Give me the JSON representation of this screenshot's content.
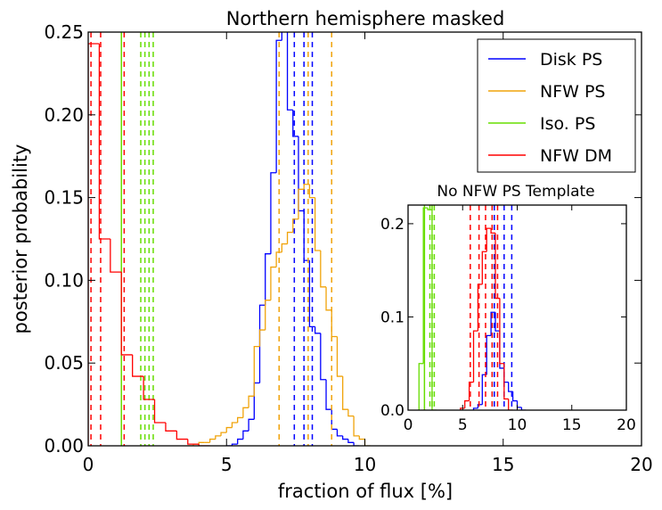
{
  "colors": {
    "disk": "#0000ff",
    "nfw_ps": "#f0a30a",
    "iso": "#66dd00",
    "nfw_dm": "#ff0000",
    "axes": "#000000",
    "background": "#ffffff"
  },
  "chart_data": [
    {
      "type": "step",
      "title": "Northern hemisphere masked",
      "xlabel": "fraction of flux [%]",
      "ylabel": "posterior probability",
      "xlim": [
        0,
        20
      ],
      "ylim": [
        0,
        0.25
      ],
      "xticks": [
        0,
        5,
        10,
        15,
        20
      ],
      "xtick_labels": [
        "0",
        "5",
        "10",
        "15",
        "20"
      ],
      "yticks": [
        0,
        0.05,
        0.1,
        0.15,
        0.2,
        0.25
      ],
      "ytick_labels": [
        "0.00",
        "0.05",
        "0.10",
        "0.15",
        "0.20",
        "0.25"
      ],
      "grid": false,
      "legend_position": "top-right",
      "series": [
        {
          "name": "Disk PS",
          "color_key": "disk",
          "bins": [
            [
              5.0,
              5.2,
              0.0
            ],
            [
              5.2,
              5.4,
              0.001
            ],
            [
              5.4,
              5.6,
              0.004
            ],
            [
              5.6,
              5.8,
              0.009
            ],
            [
              5.8,
              6.0,
              0.016
            ],
            [
              6.0,
              6.2,
              0.038
            ],
            [
              6.2,
              6.4,
              0.085
            ],
            [
              6.4,
              6.6,
              0.116
            ],
            [
              6.6,
              6.8,
              0.165
            ],
            [
              6.8,
              7.0,
              0.245
            ],
            [
              7.0,
              7.2,
              0.255
            ],
            [
              7.2,
              7.4,
              0.203
            ],
            [
              7.4,
              7.6,
              0.187
            ],
            [
              7.6,
              7.8,
              0.142
            ],
            [
              7.8,
              8.0,
              0.112
            ],
            [
              8.0,
              8.2,
              0.072
            ],
            [
              8.2,
              8.4,
              0.068
            ],
            [
              8.4,
              8.6,
              0.04
            ],
            [
              8.6,
              8.8,
              0.022
            ],
            [
              8.8,
              9.0,
              0.01
            ],
            [
              9.0,
              9.2,
              0.006
            ],
            [
              9.2,
              9.4,
              0.004
            ],
            [
              9.4,
              9.6,
              0.002
            ],
            [
              9.6,
              9.8,
              0.0
            ]
          ],
          "vlines": [
            7.45,
            7.8,
            8.1
          ]
        },
        {
          "name": "NFW PS",
          "color_key": "nfw_ps",
          "bins": [
            [
              3.6,
              3.8,
              0.0
            ],
            [
              3.8,
              4.0,
              0.001
            ],
            [
              4.0,
              4.2,
              0.002
            ],
            [
              4.2,
              4.4,
              0.002
            ],
            [
              4.4,
              4.6,
              0.004
            ],
            [
              4.6,
              4.8,
              0.006
            ],
            [
              4.8,
              5.0,
              0.008
            ],
            [
              5.0,
              5.2,
              0.011
            ],
            [
              5.2,
              5.4,
              0.014
            ],
            [
              5.4,
              5.6,
              0.017
            ],
            [
              5.6,
              5.8,
              0.023
            ],
            [
              5.8,
              6.0,
              0.03
            ],
            [
              6.0,
              6.2,
              0.06
            ],
            [
              6.2,
              6.4,
              0.07
            ],
            [
              6.4,
              6.6,
              0.088
            ],
            [
              6.6,
              6.8,
              0.108
            ],
            [
              6.8,
              7.0,
              0.117
            ],
            [
              7.0,
              7.2,
              0.122
            ],
            [
              7.2,
              7.4,
              0.129
            ],
            [
              7.4,
              7.6,
              0.137
            ],
            [
              7.6,
              7.8,
              0.155
            ],
            [
              7.8,
              8.0,
              0.158
            ],
            [
              8.0,
              8.2,
              0.15
            ],
            [
              8.2,
              8.4,
              0.118
            ],
            [
              8.4,
              8.6,
              0.096
            ],
            [
              8.6,
              8.8,
              0.082
            ],
            [
              8.8,
              9.0,
              0.066
            ],
            [
              9.0,
              9.2,
              0.042
            ],
            [
              9.2,
              9.4,
              0.022
            ],
            [
              9.4,
              9.6,
              0.018
            ],
            [
              9.6,
              9.8,
              0.006
            ],
            [
              9.8,
              10.0,
              0.004
            ],
            [
              10.0,
              10.2,
              0.0
            ]
          ],
          "vlines": [
            6.9,
            7.95,
            8.8
          ]
        },
        {
          "name": "Iso. PS",
          "color_key": "iso",
          "bins": [],
          "vlines": [
            1.2,
            1.9,
            2.05,
            2.2,
            2.35
          ]
        },
        {
          "name": "NFW DM",
          "color_key": "nfw_dm",
          "bins": [
            [
              0.0,
              0.4,
              0.243
            ],
            [
              0.4,
              0.8,
              0.125
            ],
            [
              0.8,
              1.2,
              0.105
            ],
            [
              1.2,
              1.6,
              0.055
            ],
            [
              1.6,
              2.0,
              0.042
            ],
            [
              2.0,
              2.4,
              0.028
            ],
            [
              2.4,
              2.8,
              0.014
            ],
            [
              2.8,
              3.2,
              0.009
            ],
            [
              3.2,
              3.6,
              0.004
            ],
            [
              3.6,
              4.0,
              0.001
            ],
            [
              4.0,
              4.4,
              0.0
            ]
          ],
          "vlines": [
            0.1,
            0.45,
            1.3
          ]
        }
      ]
    },
    {
      "type": "step",
      "title": "No NFW PS Template",
      "xlim": [
        0,
        20
      ],
      "ylim": [
        0,
        0.22
      ],
      "xticks": [
        0,
        5,
        10,
        15,
        20
      ],
      "xtick_labels": [
        "0",
        "5",
        "10",
        "15",
        "20"
      ],
      "yticks": [
        0,
        0.1,
        0.2
      ],
      "ytick_labels": [
        "0.0",
        "0.1",
        "0.2"
      ],
      "grid": false,
      "series": [
        {
          "color_key": "disk",
          "bins": [
            [
              6.0,
              6.4,
              0.002
            ],
            [
              6.4,
              6.8,
              0.006
            ],
            [
              6.8,
              7.2,
              0.038
            ],
            [
              7.2,
              7.6,
              0.08
            ],
            [
              7.6,
              8.0,
              0.105
            ],
            [
              8.0,
              8.4,
              0.085
            ],
            [
              8.4,
              8.8,
              0.045
            ],
            [
              8.8,
              9.2,
              0.03
            ],
            [
              9.2,
              9.6,
              0.02
            ],
            [
              9.6,
              10.0,
              0.01
            ],
            [
              10.0,
              10.4,
              0.003
            ],
            [
              10.4,
              10.8,
              0.0
            ]
          ],
          "vlines": [
            7.9,
            8.8,
            9.5
          ]
        },
        {
          "color_key": "iso",
          "bins": [
            [
              1.0,
              1.4,
              0.05
            ],
            [
              1.4,
              1.8,
              0.217
            ],
            [
              1.8,
              2.2,
              0.215
            ],
            [
              2.2,
              2.6,
              0.0
            ]
          ],
          "vlines": [
            1.5,
            2.0,
            2.2,
            2.4
          ]
        },
        {
          "color_key": "nfw_dm",
          "bins": [
            [
              4.8,
              5.2,
              0.002
            ],
            [
              5.2,
              5.6,
              0.01
            ],
            [
              5.6,
              6.0,
              0.03
            ],
            [
              6.0,
              6.4,
              0.085
            ],
            [
              6.4,
              6.8,
              0.135
            ],
            [
              6.8,
              7.2,
              0.17
            ],
            [
              7.2,
              7.6,
              0.195
            ],
            [
              7.6,
              8.0,
              0.19
            ],
            [
              8.0,
              8.4,
              0.12
            ],
            [
              8.4,
              8.8,
              0.05
            ],
            [
              8.8,
              9.2,
              0.012
            ],
            [
              9.2,
              9.6,
              0.0
            ]
          ],
          "vlines": [
            5.7,
            6.5,
            7.1,
            7.7,
            8.2
          ]
        }
      ]
    }
  ]
}
